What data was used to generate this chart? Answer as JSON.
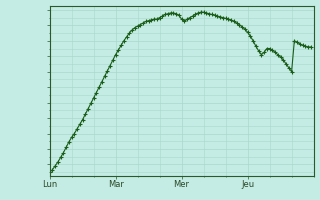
{
  "background_color": "#c5ece4",
  "grid_color": "#a8d8cc",
  "line_color": "#1a5e1a",
  "marker_color": "#1a5e1a",
  "ylim": [
    1006.5,
    1028.5
  ],
  "yticks": [
    1007,
    1009,
    1011,
    1013,
    1015,
    1017,
    1019,
    1021,
    1023,
    1025,
    1027
  ],
  "xtick_labels": [
    "Lun",
    "Mar",
    "Mer",
    "Jeu"
  ],
  "xtick_positions": [
    0,
    24,
    48,
    72
  ],
  "xlim": [
    0,
    96
  ],
  "y_values": [
    1007.0,
    1007.3,
    1007.8,
    1008.3,
    1008.9,
    1009.5,
    1010.2,
    1010.9,
    1011.5,
    1012.0,
    1012.6,
    1013.2,
    1013.8,
    1014.5,
    1015.2,
    1015.9,
    1016.6,
    1017.3,
    1018.0,
    1018.7,
    1019.4,
    1020.1,
    1020.8,
    1021.5,
    1022.2,
    1022.8,
    1023.4,
    1024.0,
    1024.5,
    1025.0,
    1025.4,
    1025.7,
    1025.9,
    1026.1,
    1026.3,
    1026.5,
    1026.6,
    1026.7,
    1026.8,
    1026.8,
    1027.0,
    1027.2,
    1027.4,
    1027.5,
    1027.6,
    1027.6,
    1027.5,
    1027.3,
    1026.8,
    1026.5,
    1026.8,
    1027.0,
    1027.2,
    1027.4,
    1027.6,
    1027.7,
    1027.7,
    1027.6,
    1027.5,
    1027.4,
    1027.3,
    1027.2,
    1027.1,
    1027.0,
    1026.9,
    1026.8,
    1026.7,
    1026.5,
    1026.3,
    1026.1,
    1025.8,
    1025.5,
    1025.1,
    1024.6,
    1024.0,
    1023.3,
    1022.7,
    1022.2,
    1022.5,
    1023.0,
    1023.0,
    1022.8,
    1022.5,
    1022.2,
    1021.9,
    1021.5,
    1021.0,
    1020.5,
    1020.0,
    1024.0,
    1023.8,
    1023.6,
    1023.4,
    1023.3,
    1023.2,
    1023.2
  ]
}
